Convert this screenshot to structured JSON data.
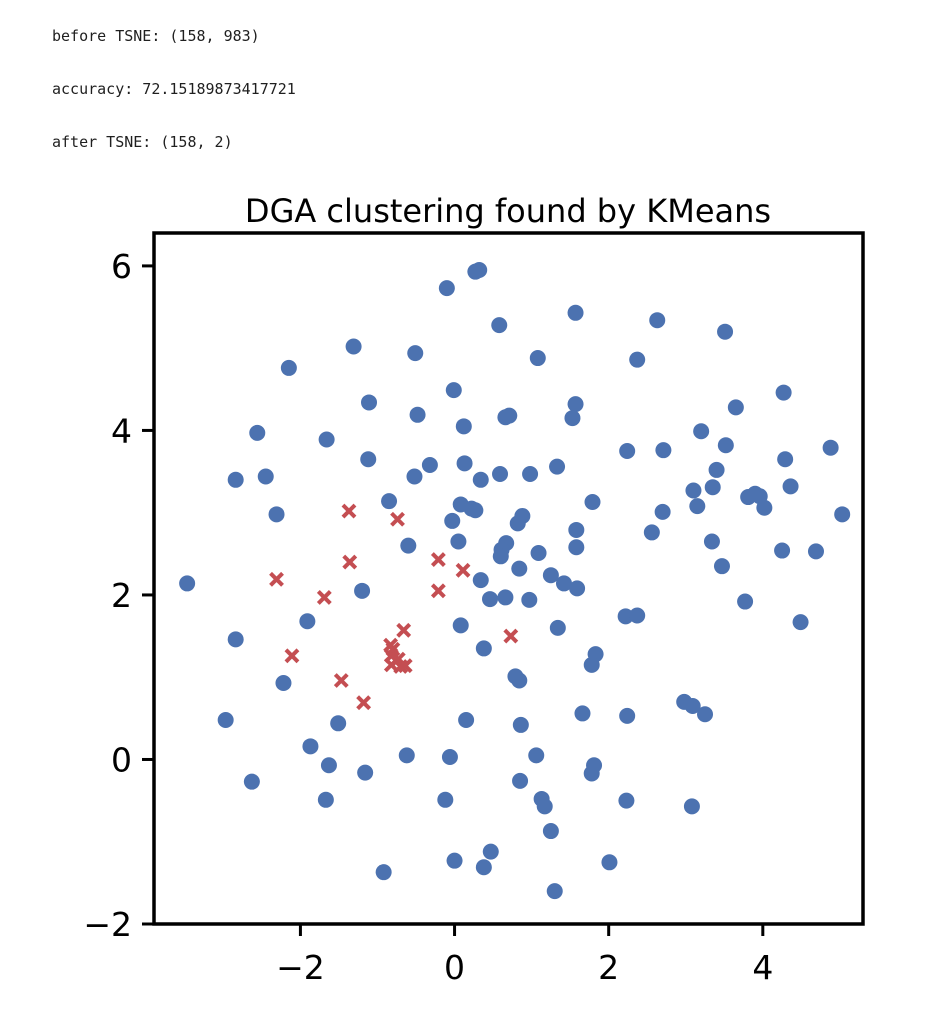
{
  "output": {
    "line1": "before TSNE: (158, 983)",
    "line2": "accuracy: 72.15189873417721",
    "line3": "after TSNE: (158, 2)"
  },
  "chart_data": {
    "type": "scatter",
    "title": "DGA clustering found by KMeans",
    "xlabel": "",
    "ylabel": "",
    "xlim": [
      -3.9,
      5.3
    ],
    "ylim": [
      -2.0,
      6.4
    ],
    "x_ticks": [
      -2,
      0,
      2,
      4
    ],
    "y_ticks": [
      -2,
      0,
      2,
      4,
      6
    ],
    "x_tick_labels": [
      "−2",
      "0",
      "2",
      "4"
    ],
    "y_tick_labels": [
      "−2",
      "0",
      "2",
      "4",
      "6"
    ],
    "grid": false,
    "legend": "none",
    "series": [
      {
        "marker": "circle",
        "color": "#4c72b0",
        "points": [
          [
            0.27,
            5.93
          ],
          [
            0.32,
            5.95
          ],
          [
            -0.1,
            5.73
          ],
          [
            0.58,
            5.28
          ],
          [
            1.57,
            5.43
          ],
          [
            2.63,
            5.34
          ],
          [
            3.51,
            5.2
          ],
          [
            -1.31,
            5.02
          ],
          [
            -0.51,
            4.94
          ],
          [
            1.08,
            4.88
          ],
          [
            2.37,
            4.86
          ],
          [
            -2.15,
            4.76
          ],
          [
            -0.01,
            4.49
          ],
          [
            4.27,
            4.46
          ],
          [
            -1.11,
            4.34
          ],
          [
            1.57,
            4.32
          ],
          [
            3.65,
            4.28
          ],
          [
            -0.48,
            4.19
          ],
          [
            0.66,
            4.16
          ],
          [
            0.71,
            4.18
          ],
          [
            1.53,
            4.15
          ],
          [
            0.12,
            4.05
          ],
          [
            -2.56,
            3.97
          ],
          [
            3.2,
            3.99
          ],
          [
            -1.66,
            3.89
          ],
          [
            3.52,
            3.82
          ],
          [
            4.88,
            3.79
          ],
          [
            2.24,
            3.75
          ],
          [
            2.71,
            3.76
          ],
          [
            -1.12,
            3.65
          ],
          [
            4.29,
            3.65
          ],
          [
            0.13,
            3.6
          ],
          [
            -0.32,
            3.58
          ],
          [
            1.33,
            3.56
          ],
          [
            0.59,
            3.47
          ],
          [
            0.98,
            3.47
          ],
          [
            3.4,
            3.52
          ],
          [
            -0.52,
            3.44
          ],
          [
            -2.45,
            3.44
          ],
          [
            -2.84,
            3.4
          ],
          [
            0.34,
            3.4
          ],
          [
            3.35,
            3.31
          ],
          [
            4.36,
            3.32
          ],
          [
            3.1,
            3.27
          ],
          [
            3.9,
            3.23
          ],
          [
            3.96,
            3.2
          ],
          [
            3.81,
            3.19
          ],
          [
            4.02,
            3.06
          ],
          [
            -0.85,
            3.14
          ],
          [
            1.79,
            3.13
          ],
          [
            0.08,
            3.1
          ],
          [
            0.22,
            3.05
          ],
          [
            0.27,
            3.03
          ],
          [
            3.15,
            3.08
          ],
          [
            5.03,
            2.98
          ],
          [
            -2.31,
            2.98
          ],
          [
            0.88,
            2.96
          ],
          [
            2.7,
            3.01
          ],
          [
            0.82,
            2.87
          ],
          [
            -0.03,
            2.9
          ],
          [
            1.58,
            2.79
          ],
          [
            2.56,
            2.76
          ],
          [
            0.67,
            2.63
          ],
          [
            -0.6,
            2.6
          ],
          [
            0.05,
            2.65
          ],
          [
            1.58,
            2.58
          ],
          [
            3.34,
            2.65
          ],
          [
            4.25,
            2.54
          ],
          [
            4.69,
            2.53
          ],
          [
            0.61,
            2.55
          ],
          [
            1.09,
            2.51
          ],
          [
            0.6,
            2.47
          ],
          [
            3.47,
            2.35
          ],
          [
            0.84,
            2.32
          ],
          [
            1.25,
            2.24
          ],
          [
            0.34,
            2.18
          ],
          [
            1.42,
            2.14
          ],
          [
            1.59,
            2.08
          ],
          [
            -3.47,
            2.14
          ],
          [
            -1.2,
            2.05
          ],
          [
            0.46,
            1.95
          ],
          [
            0.66,
            1.97
          ],
          [
            0.97,
            1.94
          ],
          [
            3.77,
            1.92
          ],
          [
            2.22,
            1.74
          ],
          [
            2.37,
            1.75
          ],
          [
            -1.91,
            1.68
          ],
          [
            4.49,
            1.67
          ],
          [
            0.08,
            1.63
          ],
          [
            1.34,
            1.6
          ],
          [
            -2.84,
            1.46
          ],
          [
            0.38,
            1.35
          ],
          [
            1.83,
            1.28
          ],
          [
            1.78,
            1.15
          ],
          [
            0.79,
            1.01
          ],
          [
            0.84,
            0.96
          ],
          [
            -2.22,
            0.93
          ],
          [
            2.98,
            0.7
          ],
          [
            3.09,
            0.65
          ],
          [
            1.66,
            0.56
          ],
          [
            3.25,
            0.55
          ],
          [
            2.24,
            0.53
          ],
          [
            0.15,
            0.48
          ],
          [
            -2.97,
            0.48
          ],
          [
            -1.51,
            0.44
          ],
          [
            0.86,
            0.42
          ],
          [
            -1.87,
            0.16
          ],
          [
            1.06,
            0.05
          ],
          [
            -0.62,
            0.05
          ],
          [
            -0.06,
            0.03
          ],
          [
            -1.63,
            -0.07
          ],
          [
            1.81,
            -0.07
          ],
          [
            -1.16,
            -0.16
          ],
          [
            1.78,
            -0.17
          ],
          [
            -2.63,
            -0.27
          ],
          [
            0.85,
            -0.26
          ],
          [
            -1.67,
            -0.49
          ],
          [
            -0.12,
            -0.49
          ],
          [
            1.13,
            -0.48
          ],
          [
            2.23,
            -0.5
          ],
          [
            1.17,
            -0.57
          ],
          [
            3.08,
            -0.57
          ],
          [
            1.25,
            -0.87
          ],
          [
            0.47,
            -1.12
          ],
          [
            0.0,
            -1.23
          ],
          [
            2.01,
            -1.25
          ],
          [
            0.38,
            -1.31
          ],
          [
            -0.92,
            -1.37
          ],
          [
            1.3,
            -1.6
          ]
        ]
      },
      {
        "marker": "x",
        "color": "#c44e52",
        "points": [
          [
            -1.37,
            3.02
          ],
          [
            -0.74,
            2.92
          ],
          [
            -1.36,
            2.4
          ],
          [
            -0.21,
            2.43
          ],
          [
            0.11,
            2.3
          ],
          [
            -2.31,
            2.19
          ],
          [
            -1.69,
            1.97
          ],
          [
            -0.21,
            2.05
          ],
          [
            -0.66,
            1.57
          ],
          [
            0.73,
            1.5
          ],
          [
            -0.83,
            1.39
          ],
          [
            -0.8,
            1.34
          ],
          [
            -0.82,
            1.26
          ],
          [
            -2.11,
            1.26
          ],
          [
            -0.73,
            1.22
          ],
          [
            -0.82,
            1.15
          ],
          [
            -0.64,
            1.14
          ],
          [
            -0.7,
            1.13
          ],
          [
            -1.47,
            0.96
          ],
          [
            -1.18,
            0.69
          ]
        ]
      }
    ]
  }
}
